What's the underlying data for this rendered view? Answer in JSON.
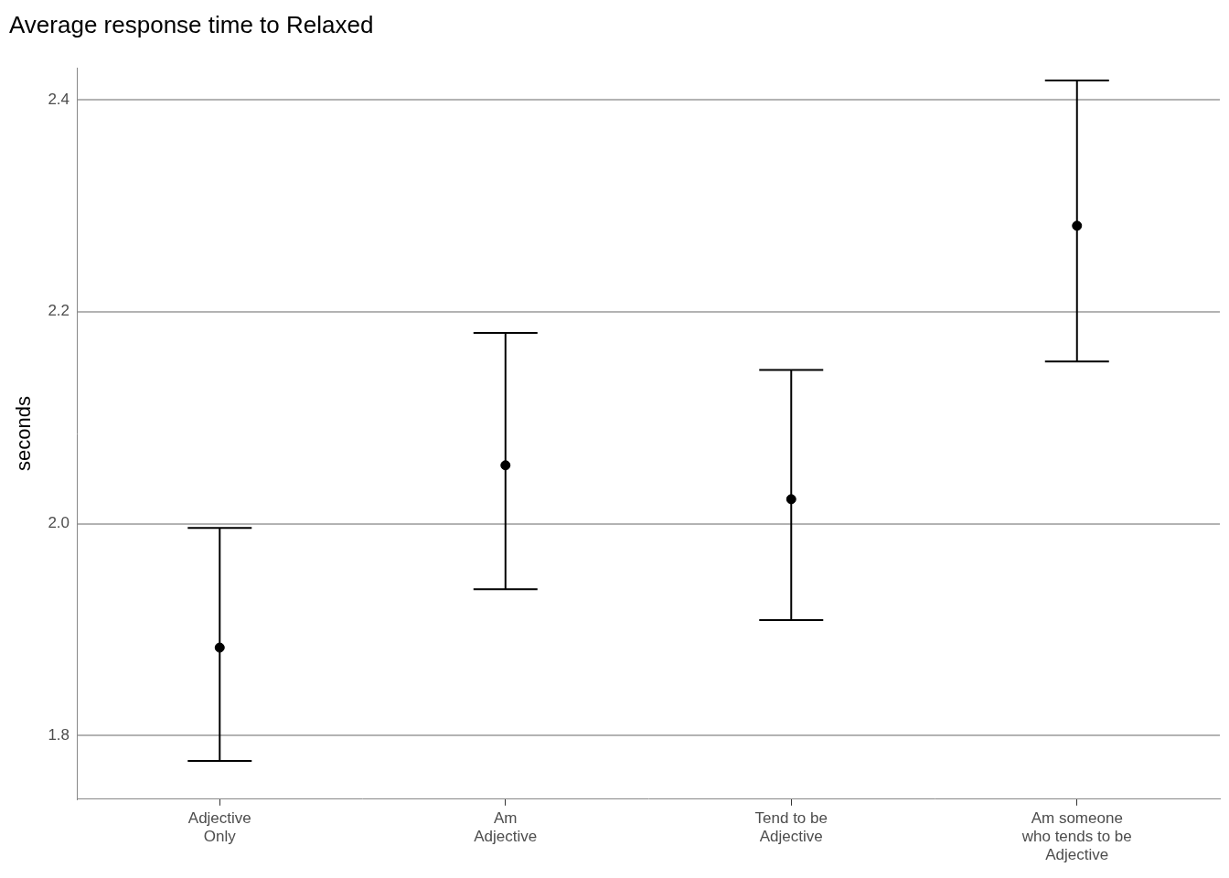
{
  "chart_data": {
    "type": "scatter",
    "title": "Average response time to Relaxed",
    "y_label": "seconds",
    "categories": [
      [
        "Adjective",
        "Only"
      ],
      [
        "Am",
        "Adjective"
      ],
      [
        "Tend to be",
        "Adjective"
      ],
      [
        "Am someone",
        "who tends to be",
        "Adjective"
      ]
    ],
    "values": [
      1.883,
      2.055,
      2.023,
      2.281
    ],
    "error_lower": [
      1.776,
      1.938,
      1.909,
      2.153
    ],
    "error_upper": [
      1.996,
      2.18,
      2.145,
      2.418
    ],
    "color": "#000000",
    "marker": "circle",
    "ylim": [
      1.74,
      2.43
    ],
    "yticks": [
      1.8,
      {
        "value": 2,
        "label": "2.0"
      },
      2.2,
      2.4
    ],
    "grid": true
  }
}
